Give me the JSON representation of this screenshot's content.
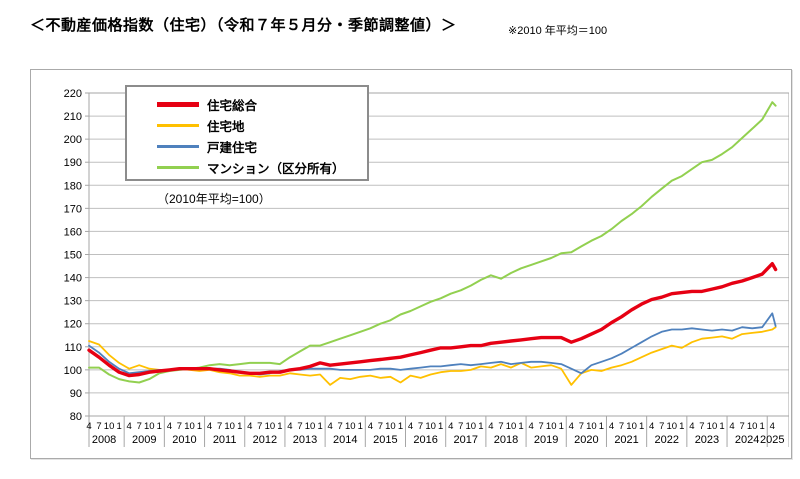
{
  "header": {
    "title": "＜不動産価格指数（住宅）（令和７年５月分・季節調整値）＞",
    "note": "※2010 年平均＝100"
  },
  "chart_data": {
    "type": "line",
    "title": "不動産価格指数（住宅）",
    "inner_caption": "（2010年平均=100）",
    "xlabel": "",
    "ylabel": "",
    "ylim": [
      80,
      220
    ],
    "y_step": 10,
    "grid": "horizontal",
    "legend_position": "top-left-inside",
    "x_axis": {
      "years": [
        2008,
        2009,
        2010,
        2011,
        2012,
        2013,
        2014,
        2015,
        2016,
        2017,
        2018,
        2019,
        2020,
        2021,
        2022,
        2023,
        2024,
        2025
      ],
      "ticks_per_year": [
        "4",
        "7",
        "10",
        "1"
      ],
      "final_year_ticks": [
        "4"
      ],
      "note": "monthly series Apr 2008 - May 2025, quarterly tick labels"
    },
    "month_offsets": [
      0,
      3,
      6,
      9,
      12,
      15,
      18,
      21,
      24,
      27,
      30,
      33,
      36,
      39,
      42,
      45,
      48,
      51,
      54,
      57,
      60,
      63,
      66,
      69,
      72,
      75,
      78,
      81,
      84,
      87,
      90,
      93,
      96,
      99,
      102,
      105,
      108,
      111,
      114,
      117,
      120,
      123,
      126,
      129,
      132,
      135,
      138,
      141,
      144,
      147,
      150,
      153,
      156,
      159,
      162,
      165,
      168,
      171,
      174,
      177,
      180,
      183,
      186,
      189,
      192,
      195,
      198,
      201,
      204,
      205
    ],
    "series": [
      {
        "name": "住宅総合",
        "color": "#e60013",
        "line_width": 3.4,
        "values": [
          108.5,
          105.5,
          102,
          99,
          97.5,
          98,
          99,
          99.5,
          100,
          100.5,
          100.5,
          100.5,
          100.5,
          100,
          99.5,
          99,
          98.5,
          98.5,
          99,
          99,
          100,
          100.5,
          101.5,
          103,
          102,
          102.5,
          103,
          103.5,
          104,
          104.5,
          105,
          105.5,
          106.5,
          107.5,
          108.5,
          109.5,
          109.5,
          110,
          110.5,
          110.5,
          111.5,
          112,
          112.5,
          113,
          113.5,
          114,
          114,
          114,
          112,
          113.5,
          115.5,
          117.5,
          120.5,
          123,
          126,
          128.5,
          130.5,
          131.5,
          133,
          133.5,
          134,
          134,
          135,
          136,
          137.5,
          138.5,
          140,
          141.5,
          146,
          143.5
        ]
      },
      {
        "name": "住宅地",
        "color": "#ffc000",
        "line_width": 1.8,
        "values": [
          112.5,
          111,
          106.5,
          103,
          100.5,
          102,
          100.5,
          100,
          100,
          100.5,
          100,
          99.5,
          100,
          99,
          98.5,
          97.5,
          97.5,
          97,
          97.5,
          97.5,
          98.5,
          98,
          97.5,
          98,
          93.5,
          96.5,
          96,
          97,
          97.5,
          96.5,
          97,
          94.5,
          97.5,
          96.5,
          98,
          99,
          99.5,
          99.5,
          100,
          101.5,
          101,
          102.5,
          101,
          103,
          101,
          101.5,
          102,
          100.5,
          93.5,
          98.5,
          100,
          99.5,
          101,
          102,
          103.5,
          105.5,
          107.5,
          109,
          110.5,
          109.5,
          112,
          113.5,
          114,
          114.5,
          113.5,
          115.5,
          116,
          116.5,
          117.5,
          118.5
        ]
      },
      {
        "name": "戸建住宅",
        "color": "#4f81bd",
        "line_width": 1.8,
        "values": [
          110.5,
          107.5,
          103.5,
          100.5,
          98.5,
          99,
          99.5,
          100,
          100,
          100.5,
          100.5,
          100.5,
          100.5,
          100.5,
          100,
          99,
          98.5,
          98,
          98.5,
          99.5,
          100,
          100,
          100.5,
          100.5,
          100.5,
          100,
          100,
          100,
          100,
          100.5,
          100.5,
          100,
          100.5,
          101,
          101.5,
          101.5,
          102,
          102.5,
          102,
          102.5,
          103,
          103.5,
          102.5,
          103,
          103.5,
          103.5,
          103,
          102.5,
          100.5,
          98.5,
          102,
          103.5,
          105,
          107,
          109.5,
          112,
          114.5,
          116.5,
          117.5,
          117.5,
          118,
          117.5,
          117,
          117.5,
          117,
          118.5,
          118,
          118.5,
          124.5,
          119
        ]
      },
      {
        "name": "マンション（区分所有）",
        "color": "#92d050",
        "line_width": 2,
        "values": [
          101,
          101,
          98,
          96,
          95,
          94.5,
          96,
          98.5,
          99.5,
          100,
          100.5,
          101,
          102,
          102.5,
          102,
          102.5,
          103,
          103,
          103,
          102.5,
          105.5,
          108,
          110.5,
          110.5,
          112,
          113.5,
          115,
          116.5,
          118,
          120,
          121.5,
          124,
          125.5,
          127.5,
          129.5,
          131,
          133,
          134.5,
          136.5,
          139,
          141,
          139.5,
          142,
          144,
          145.5,
          147,
          148.5,
          150.5,
          151,
          153.5,
          156,
          158,
          161,
          164.5,
          167.5,
          171,
          175,
          178.5,
          182,
          184,
          187,
          190,
          191,
          193.5,
          196.5,
          200.5,
          204.5,
          208.5,
          216,
          214.5
        ]
      }
    ]
  },
  "colors": {
    "grid": "#bfbfbf",
    "axis": "#a6a6a6",
    "box_border": "#aaaaaa",
    "text": "#000000"
  }
}
